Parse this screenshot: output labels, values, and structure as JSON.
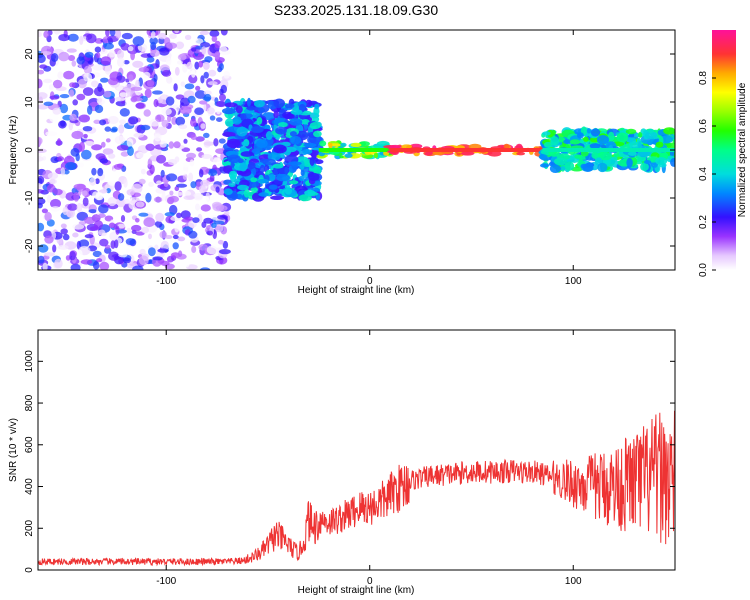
{
  "title": "S233.2025.131.18.09.G30",
  "colors": {
    "snr_line": "#ee3333",
    "axis": "#000000",
    "background": "#ffffff"
  },
  "chart_data": [
    {
      "type": "heatmap",
      "xlabel": "Height of straight line (km)",
      "ylabel": "Frequency (Hz)",
      "xlim": [
        -163,
        150
      ],
      "ylim": [
        -25,
        25
      ],
      "xticks": [
        -100,
        0,
        100
      ],
      "yticks": [
        -20,
        -10,
        0,
        10,
        20
      ],
      "grid": false,
      "colorbar": {
        "label": "Normalized spectral amplitude",
        "range": [
          0,
          1
        ],
        "ticks": [
          0.0,
          0.2,
          0.4,
          0.6,
          0.8
        ]
      },
      "description_regions": [
        {
          "x_range": [
            -163,
            -70
          ],
          "freq_range": [
            -25,
            25
          ],
          "amplitude_range": [
            0.0,
            0.3
          ],
          "pattern": "scattered noise"
        },
        {
          "x_range": [
            -70,
            -25
          ],
          "freq_range": [
            -10,
            10
          ],
          "amplitude_range": [
            0.2,
            0.45
          ],
          "pattern": "broad patchy band"
        },
        {
          "x_range": [
            -25,
            10
          ],
          "freq_range": [
            -1.5,
            1.5
          ],
          "amplitude_range": [
            0.35,
            0.8
          ],
          "pattern": "narrow line"
        },
        {
          "x_range": [
            10,
            85
          ],
          "freq_range": [
            -0.8,
            0.8
          ],
          "amplitude_range": [
            0.8,
            1.0
          ],
          "pattern": "strong narrow line"
        },
        {
          "x_range": [
            85,
            150
          ],
          "freq_range": [
            -4,
            4
          ],
          "amplitude_range": [
            0.3,
            0.6
          ],
          "pattern": "widening line"
        }
      ]
    },
    {
      "type": "line",
      "xlabel": "Height of straight line (km)",
      "ylabel": "SNR (10 * v/v)",
      "xlim": [
        -163,
        150
      ],
      "ylim": [
        0,
        1150
      ],
      "xticks": [
        -100,
        0,
        100
      ],
      "yticks": [
        0,
        200,
        400,
        600,
        800,
        1000
      ],
      "grid": false,
      "series": [
        {
          "x": [
            -163,
            -150,
            -140,
            -130,
            -120,
            -110,
            -100,
            -90,
            -80,
            -70,
            -62,
            -58,
            -54,
            -50,
            -46,
            -42,
            -38,
            -35,
            -32,
            -30,
            -28,
            -24,
            -20,
            -16,
            -12,
            -8,
            -4,
            0,
            4,
            8,
            12,
            16,
            20,
            25,
            30,
            35,
            40,
            45,
            50,
            55,
            60,
            65,
            70,
            75,
            80,
            85,
            90,
            95,
            100,
            105,
            110,
            115,
            120,
            125,
            130,
            135,
            140,
            145,
            150
          ],
          "values": [
            40,
            40,
            40,
            40,
            40,
            40,
            40,
            40,
            40,
            40,
            45,
            60,
            80,
            120,
            170,
            140,
            100,
            80,
            140,
            250,
            200,
            240,
            230,
            240,
            260,
            280,
            300,
            300,
            320,
            340,
            380,
            400,
            430,
            440,
            450,
            455,
            460,
            465,
            470,
            470,
            470,
            470,
            475,
            470,
            470,
            460,
            445,
            430,
            415,
            410,
            400,
            400,
            400,
            410,
            420,
            430,
            440,
            450,
            430
          ]
        }
      ]
    }
  ]
}
